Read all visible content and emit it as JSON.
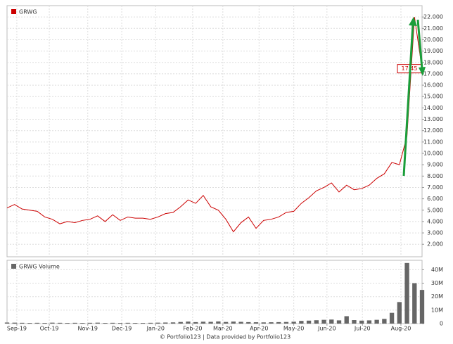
{
  "chart_data": [
    {
      "type": "line",
      "series": [
        {
          "name": "GRWG",
          "color": "#cc0000",
          "values": [
            5.2,
            5.5,
            5.1,
            5.0,
            4.9,
            4.4,
            4.2,
            3.8,
            4.0,
            3.9,
            4.1,
            4.2,
            4.5,
            4.0,
            4.6,
            4.1,
            4.4,
            4.3,
            4.3,
            4.2,
            4.4,
            4.7,
            4.8,
            5.3,
            5.9,
            5.6,
            6.3,
            5.3,
            5.0,
            4.2,
            3.1,
            3.9,
            4.4,
            3.4,
            4.1,
            4.2,
            4.4,
            4.8,
            4.9,
            5.6,
            6.1,
            6.7,
            7.0,
            7.4,
            6.6,
            7.2,
            6.8,
            6.9,
            7.2,
            7.8,
            8.2,
            9.2,
            9.0,
            11.5,
            22.0,
            17.45
          ]
        }
      ],
      "ylim": [
        0.9,
        23
      ],
      "yticks": [
        {
          "value": 2,
          "label": "2.000"
        },
        {
          "value": 3,
          "label": "3.000"
        },
        {
          "value": 4,
          "label": "4.000"
        },
        {
          "value": 5,
          "label": "5.000"
        },
        {
          "value": 6,
          "label": "6.000"
        },
        {
          "value": 7,
          "label": "7.000"
        },
        {
          "value": 8,
          "label": "8.000"
        },
        {
          "value": 9,
          "label": "9.000"
        },
        {
          "value": 10,
          "label": "10.000"
        },
        {
          "value": 11,
          "label": "11.000"
        },
        {
          "value": 12,
          "label": "12.000"
        },
        {
          "value": 13,
          "label": "13.000"
        },
        {
          "value": 14,
          "label": "14.000"
        },
        {
          "value": 15,
          "label": "15.000"
        },
        {
          "value": 16,
          "label": "16.000"
        },
        {
          "value": 17,
          "label": "17.000"
        },
        {
          "value": 18,
          "label": "18.000"
        },
        {
          "value": 19,
          "label": "19.000"
        },
        {
          "value": 20,
          "label": "20.000"
        },
        {
          "value": 21,
          "label": "21.000"
        },
        {
          "value": 22,
          "label": "22.000"
        }
      ],
      "xlim": [
        0,
        55
      ],
      "xticks": [
        {
          "value": 1.3,
          "label": "Sep-19"
        },
        {
          "value": 5.6,
          "label": "Oct-19"
        },
        {
          "value": 10.7,
          "label": "Nov-19"
        },
        {
          "value": 15.2,
          "label": "Dec-19"
        },
        {
          "value": 19.7,
          "label": "Jan-20"
        },
        {
          "value": 24.6,
          "label": "Feb-20"
        },
        {
          "value": 28.6,
          "label": "Mar-20"
        },
        {
          "value": 33.4,
          "label": "Apr-20"
        },
        {
          "value": 38,
          "label": "May-20"
        },
        {
          "value": 42.4,
          "label": "Jun-20"
        },
        {
          "value": 47.1,
          "label": "Jul-20"
        },
        {
          "value": 52.2,
          "label": "Aug-20"
        }
      ],
      "grid": true
    },
    {
      "type": "bar",
      "series": [
        {
          "name": "GRWG Volume",
          "color": "#666666",
          "values": [
            800000,
            700000,
            600000,
            500000,
            600000,
            500000,
            700000,
            600000,
            500000,
            600000,
            500000,
            600000,
            700000,
            500000,
            600000,
            500000,
            600000,
            500000,
            500000,
            600000,
            700000,
            800000,
            900000,
            1200000,
            1500000,
            1100000,
            1400000,
            1300000,
            1600000,
            1200000,
            1500000,
            1300000,
            1100000,
            1000000,
            900000,
            1000000,
            1100000,
            1200000,
            1400000,
            2000000,
            2200000,
            2500000,
            2800000,
            3000000,
            2400000,
            5500000,
            2600000,
            2200000,
            2400000,
            2800000,
            3500000,
            8000000,
            16000000,
            45000000,
            30000000,
            25000000
          ]
        }
      ],
      "ylim": [
        0,
        47000000
      ],
      "yticks": [
        {
          "value": 0,
          "label": "0"
        },
        {
          "value": 10000000,
          "label": "10M"
        },
        {
          "value": 20000000,
          "label": "20M"
        },
        {
          "value": 30000000,
          "label": "30M"
        },
        {
          "value": 40000000,
          "label": "40M"
        }
      ],
      "xlim": [
        0,
        55
      ],
      "xticks": [
        {
          "value": 1.3,
          "label": "Sep-19"
        },
        {
          "value": 5.6,
          "label": "Oct-19"
        },
        {
          "value": 10.7,
          "label": "Nov-19"
        },
        {
          "value": 15.2,
          "label": "Dec-19"
        },
        {
          "value": 19.7,
          "label": "Jan-20"
        },
        {
          "value": 24.6,
          "label": "Feb-20"
        },
        {
          "value": 28.6,
          "label": "Mar-20"
        },
        {
          "value": 33.4,
          "label": "Apr-20"
        },
        {
          "value": 38,
          "label": "May-20"
        },
        {
          "value": 42.4,
          "label": "Jun-20"
        },
        {
          "value": 47.1,
          "label": "Jul-20"
        },
        {
          "value": 52.2,
          "label": "Aug-20"
        }
      ],
      "grid": true
    }
  ],
  "footer": "© Portfolio123 | Data provided by Portfolio123"
}
